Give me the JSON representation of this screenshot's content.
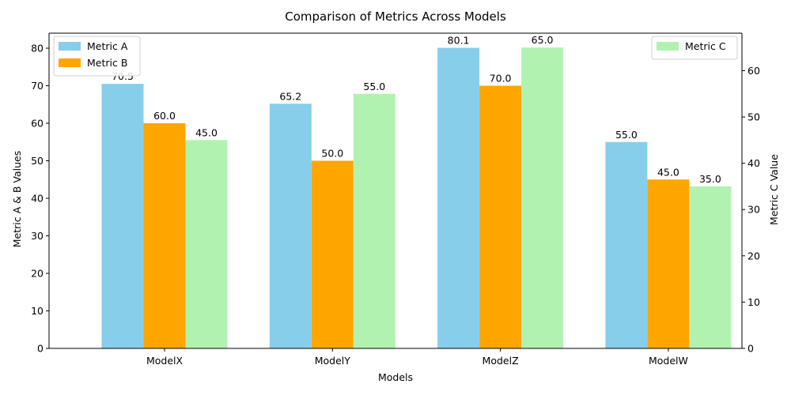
{
  "chart_data": {
    "type": "bar",
    "title": "Comparison of Metrics Across Models",
    "xlabel": "Models",
    "ylabel": "Metric A & B Values",
    "ylabel_right": "Metric C Value",
    "categories": [
      "ModelX",
      "ModelY",
      "ModelZ",
      "ModelW"
    ],
    "series": [
      {
        "name": "Metric A",
        "axis": "left",
        "color": "#87ceeb",
        "values": [
          70.5,
          65.2,
          80.1,
          55.0
        ],
        "labels": [
          "70.5",
          "65.2",
          "80.1",
          "55.0"
        ]
      },
      {
        "name": "Metric B",
        "axis": "left",
        "color": "#ffa500",
        "values": [
          60.0,
          50.0,
          70.0,
          45.0
        ],
        "labels": [
          "60.0",
          "50.0",
          "70.0",
          "45.0"
        ]
      },
      {
        "name": "Metric C",
        "axis": "right",
        "color": "#b2f2b0",
        "values": [
          45.0,
          55.0,
          65.0,
          35.0
        ],
        "labels": [
          "45.0",
          "55.0",
          "65.0",
          "35.0"
        ]
      }
    ],
    "ylim": [
      0,
      84
    ],
    "ylim_right": [
      0,
      68.1
    ],
    "yticks": [
      "0",
      "10",
      "20",
      "30",
      "40",
      "50",
      "60",
      "70",
      "80"
    ],
    "yticks_right": [
      "0",
      "10",
      "20",
      "30",
      "40",
      "50",
      "60"
    ],
    "right_label_color": "#006400",
    "legend_left": "top-left",
    "legend_right": "top-right",
    "grid": false
  }
}
